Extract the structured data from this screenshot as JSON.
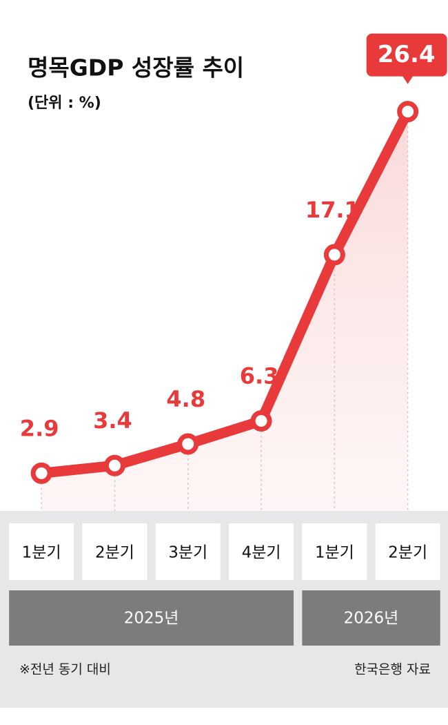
{
  "chart_data": {
    "type": "line",
    "title": "명목GDP 성장률 추이",
    "subtitle": "(단위 : %)",
    "categories": [
      "1분기",
      "2분기",
      "3분기",
      "4분기",
      "1분기",
      "2분기"
    ],
    "values": [
      2.9,
      3.4,
      4.8,
      6.3,
      17.1,
      26.4
    ],
    "color": "#e8393b",
    "ylim": [
      0,
      28
    ],
    "groups": [
      {
        "label": "2025년",
        "span": 4
      },
      {
        "label": "2026년",
        "span": 2
      }
    ],
    "note": "※전년 동기 대비",
    "source": "한국은행 자료"
  }
}
